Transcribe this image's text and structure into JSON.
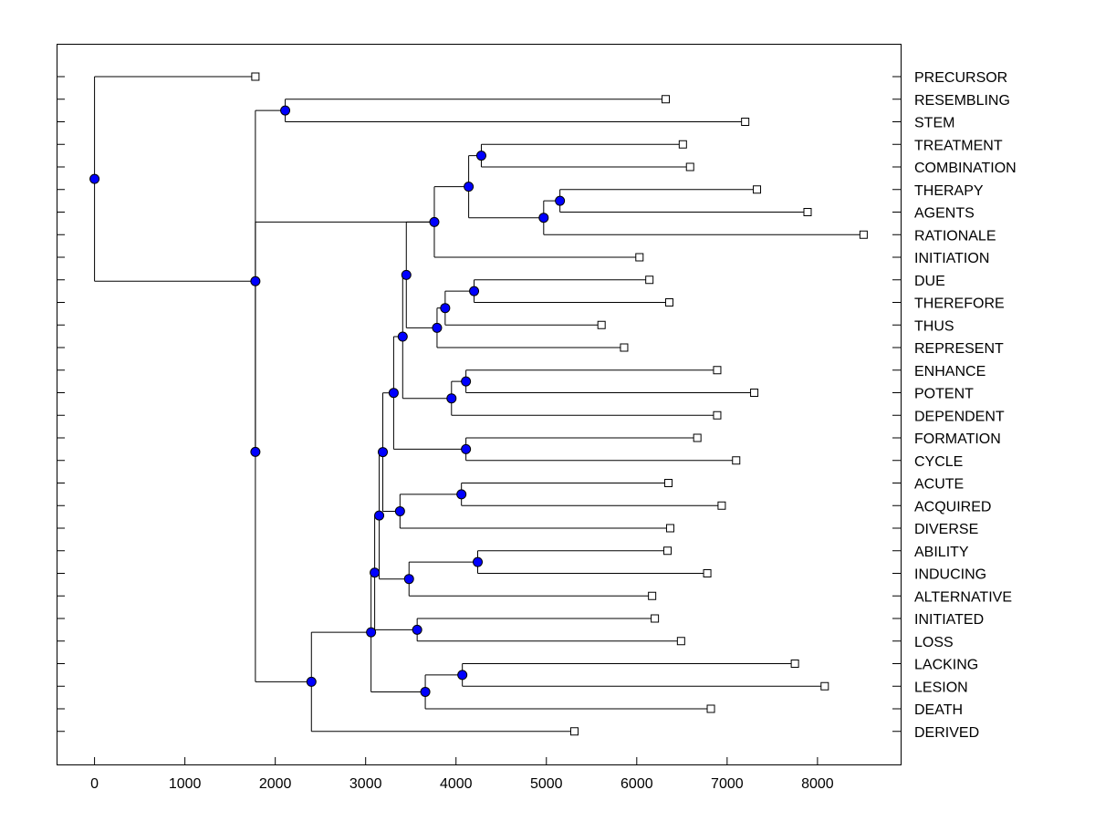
{
  "chart_data": {
    "type": "dendrogram",
    "orientation": "horizontal",
    "title": "",
    "xlabel": "",
    "ylabel": "",
    "xlim": [
      -420,
      8920
    ],
    "xticks": [
      0,
      1000,
      2000,
      3000,
      4000,
      5000,
      6000,
      7000,
      8000
    ],
    "xtick_labels": [
      "0",
      "1000",
      "2000",
      "3000",
      "4000",
      "5000",
      "6000",
      "7000",
      "8000"
    ],
    "colors": {
      "node": "#0000ff",
      "leaf_marker": "#ffffff",
      "line": "#000000"
    },
    "leaves": [
      {
        "label": "PRECURSOR",
        "value": 1780
      },
      {
        "label": "RESEMBLING",
        "value": 6320
      },
      {
        "label": "STEM",
        "value": 7200
      },
      {
        "label": "TREATMENT",
        "value": 6510
      },
      {
        "label": "COMBINATION",
        "value": 6590
      },
      {
        "label": "THERAPY",
        "value": 7330
      },
      {
        "label": "AGENTS",
        "value": 7890
      },
      {
        "label": "RATIONALE",
        "value": 8510
      },
      {
        "label": "INITIATION",
        "value": 6030
      },
      {
        "label": "DUE",
        "value": 6140
      },
      {
        "label": "THEREFORE",
        "value": 6360
      },
      {
        "label": "THUS",
        "value": 5610
      },
      {
        "label": "REPRESENT",
        "value": 5860
      },
      {
        "label": "ENHANCE",
        "value": 6890
      },
      {
        "label": "POTENT",
        "value": 7300
      },
      {
        "label": "DEPENDENT",
        "value": 6890
      },
      {
        "label": "FORMATION",
        "value": 6670
      },
      {
        "label": "CYCLE",
        "value": 7100
      },
      {
        "label": "ACUTE",
        "value": 6350
      },
      {
        "label": "ACQUIRED",
        "value": 6940
      },
      {
        "label": "DIVERSE",
        "value": 6370
      },
      {
        "label": "ABILITY",
        "value": 6340
      },
      {
        "label": "INDUCING",
        "value": 6780
      },
      {
        "label": "ALTERNATIVE",
        "value": 6170
      },
      {
        "label": "INITIATED",
        "value": 6200
      },
      {
        "label": "LOSS",
        "value": 6490
      },
      {
        "label": "LACKING",
        "value": 7750
      },
      {
        "label": "LESION",
        "value": 8080
      },
      {
        "label": "DEATH",
        "value": 6820
      },
      {
        "label": "DERIVED",
        "value": 5310
      }
    ],
    "merges": [
      {
        "id": "n1",
        "value": 0,
        "children": [
          "L0",
          "n2"
        ]
      },
      {
        "id": "n2",
        "value": 1780,
        "children": [
          "n3",
          "n4"
        ]
      },
      {
        "id": "n3",
        "value": 2110,
        "children": [
          "L1",
          "L2"
        ]
      },
      {
        "id": "n4",
        "value": 1780,
        "children": [
          "n5",
          "n22"
        ]
      },
      {
        "id": "n5",
        "value": 3760,
        "children": [
          "n6",
          "L8"
        ]
      },
      {
        "id": "n6",
        "value": 4140,
        "children": [
          "n7",
          "n8"
        ]
      },
      {
        "id": "n7",
        "value": 4280,
        "children": [
          "L3",
          "L4"
        ]
      },
      {
        "id": "n8",
        "value": 4970,
        "children": [
          "n9",
          "L7"
        ]
      },
      {
        "id": "n9",
        "value": 5150,
        "children": [
          "L5",
          "L6"
        ]
      },
      {
        "id": "n10",
        "value": 3450,
        "children": [
          "n5",
          "n11"
        ]
      },
      {
        "id": "n11",
        "value": 3790,
        "children": [
          "n12",
          "L12"
        ]
      },
      {
        "id": "n12",
        "value": 3880,
        "children": [
          "n13",
          "L11"
        ]
      },
      {
        "id": "n13",
        "value": 4200,
        "children": [
          "L9",
          "L10"
        ]
      },
      {
        "id": "n14",
        "value": 3410,
        "children": [
          "n10",
          "n15"
        ]
      },
      {
        "id": "n15",
        "value": 3950,
        "children": [
          "n16",
          "L15"
        ]
      },
      {
        "id": "n16",
        "value": 4110,
        "children": [
          "L13",
          "L14"
        ]
      },
      {
        "id": "n17",
        "value": 3310,
        "children": [
          "n14",
          "n18"
        ]
      },
      {
        "id": "n18",
        "value": 4110,
        "children": [
          "L16",
          "L17"
        ]
      },
      {
        "id": "n19",
        "value": 3190,
        "children": [
          "n17",
          "n20"
        ]
      },
      {
        "id": "n20",
        "value": 3380,
        "children": [
          "n21",
          "L20"
        ]
      },
      {
        "id": "n21",
        "value": 4060,
        "children": [
          "L18",
          "L19"
        ]
      },
      {
        "id": "n22",
        "value": 2400,
        "children": [
          "n23",
          "L29"
        ]
      },
      {
        "id": "n23",
        "value": 3060,
        "children": [
          "n24",
          "n27"
        ]
      },
      {
        "id": "n24",
        "value": 3100,
        "children": [
          "n25",
          "n26"
        ]
      },
      {
        "id": "n25",
        "value": 3150,
        "children": [
          "n19",
          "n28"
        ]
      },
      {
        "id": "n28",
        "value": 3480,
        "children": [
          "n29",
          "L23"
        ]
      },
      {
        "id": "n29",
        "value": 4240,
        "children": [
          "L21",
          "L22"
        ]
      },
      {
        "id": "n26",
        "value": 3570,
        "children": [
          "L24",
          "L25"
        ]
      },
      {
        "id": "n27",
        "value": 3660,
        "children": [
          "n30",
          "L28"
        ]
      },
      {
        "id": "n30",
        "value": 4070,
        "children": [
          "L26",
          "L27"
        ]
      }
    ]
  }
}
